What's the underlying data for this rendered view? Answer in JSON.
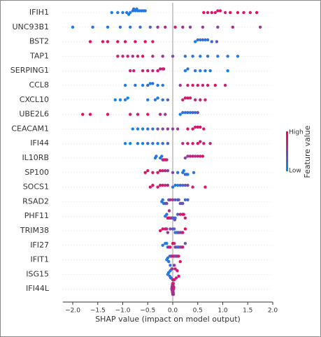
{
  "chart_data": {
    "type": "beeswarm",
    "xlabel": "SHAP value (impact on model output)",
    "xlim": [
      -2.2,
      2.0
    ],
    "xticks": [
      {
        "value": -2.0,
        "label": "−2.0"
      },
      {
        "value": -1.5,
        "label": "−1.5"
      },
      {
        "value": -1.0,
        "label": "−1.0"
      },
      {
        "value": -0.5,
        "label": "−0.5"
      },
      {
        "value": 0.0,
        "label": "0.0"
      },
      {
        "value": 0.5,
        "label": "0.5"
      },
      {
        "value": 1.0,
        "label": "1.0"
      },
      {
        "value": 1.5,
        "label": "1.5"
      },
      {
        "value": 2.0,
        "label": "2.0"
      }
    ],
    "colormap": {
      "low": "#008bfb",
      "high": "#ff0051"
    },
    "colorbar_label": "Feature value",
    "colorbar_high": "High",
    "colorbar_low": "Low",
    "series": [
      {
        "name": "IFIH1",
        "values": [
          -1.22,
          -1.1,
          -1.0,
          -0.92,
          -0.85,
          -0.8,
          -0.75,
          -0.7,
          -0.66,
          -0.62,
          -0.58,
          -0.55,
          -0.72,
          -0.78,
          -0.88,
          0.62,
          0.7,
          0.78,
          0.85,
          0.9,
          0.95,
          1.05,
          1.15,
          1.3,
          1.42,
          1.55,
          1.68
        ],
        "feature_values": [
          0.05,
          0.1,
          0.1,
          0.15,
          0.1,
          0.2,
          0.1,
          0.15,
          0.1,
          0.2,
          0.1,
          0.15,
          0.1,
          0.2,
          0.1,
          0.9,
          0.8,
          0.9,
          0.85,
          0.75,
          0.9,
          0.8,
          0.9,
          0.85,
          0.9,
          0.8,
          0.9
        ]
      },
      {
        "name": "UNC93B1",
        "values": [
          -2.0,
          -1.6,
          -1.3,
          -1.05,
          -0.85,
          -0.65,
          -0.45,
          -0.3,
          -0.15,
          0.05,
          0.2,
          0.35,
          0.6,
          0.9,
          1.2,
          1.75
        ],
        "feature_values": [
          0.1,
          0.15,
          0.1,
          0.2,
          0.15,
          0.2,
          0.3,
          0.6,
          0.7,
          0.8,
          0.7,
          0.6,
          0.6,
          0.5,
          0.7,
          0.6
        ]
      },
      {
        "name": "BST2",
        "values": [
          -1.65,
          -1.4,
          -1.3,
          -1.1,
          -0.95,
          -0.75,
          -0.55,
          -0.4,
          0.45,
          0.5,
          0.55,
          0.6,
          0.65,
          0.7,
          0.78,
          0.88
        ],
        "feature_values": [
          0.9,
          0.9,
          0.85,
          0.9,
          0.8,
          0.85,
          0.9,
          0.8,
          0.1,
          0.2,
          0.15,
          0.3,
          0.1,
          0.25,
          0.2,
          0.4
        ]
      },
      {
        "name": "TAP1",
        "values": [
          -1.1,
          -1.0,
          -0.9,
          -0.8,
          -0.7,
          -0.6,
          -0.4,
          -0.2,
          0.0,
          0.25,
          0.4,
          0.55,
          0.7,
          0.9,
          1.1,
          1.3
        ],
        "feature_values": [
          0.8,
          0.75,
          0.85,
          0.7,
          0.8,
          0.9,
          0.7,
          0.6,
          0.5,
          0.2,
          0.15,
          0.1,
          0.2,
          0.1,
          0.15,
          0.1
        ]
      },
      {
        "name": "SERPING1",
        "values": [
          -0.85,
          -0.78,
          -0.6,
          -0.5,
          -0.4,
          -0.3,
          -0.25,
          -0.2,
          -0.18,
          0.25,
          0.3,
          0.45,
          0.55,
          0.65,
          0.75,
          1.1
        ],
        "feature_values": [
          0.8,
          0.7,
          0.75,
          0.8,
          0.7,
          0.85,
          0.8,
          0.9,
          0.75,
          0.1,
          0.15,
          0.2,
          0.1,
          0.15,
          0.1,
          0.1
        ]
      },
      {
        "name": "CCL8",
        "values": [
          -0.95,
          -0.75,
          -0.6,
          -0.5,
          -0.45,
          -0.4,
          -0.3,
          -0.2,
          0.15,
          0.3,
          0.4,
          0.5,
          0.6,
          0.7,
          0.85,
          1.05
        ],
        "feature_values": [
          0.1,
          0.15,
          0.1,
          0.2,
          0.1,
          0.15,
          0.1,
          0.2,
          0.6,
          0.8,
          0.85,
          0.9,
          0.8,
          0.85,
          0.9,
          0.8
        ]
      },
      {
        "name": "CXCL10",
        "values": [
          -1.15,
          -1.05,
          -0.95,
          -0.9,
          -0.5,
          -0.35,
          -0.3,
          -0.2,
          -0.1,
          0.2,
          0.25,
          0.3,
          0.35,
          0.45,
          0.55,
          0.65
        ],
        "feature_values": [
          0.05,
          0.1,
          0.1,
          0.05,
          0.1,
          0.15,
          0.1,
          0.2,
          0.3,
          0.8,
          0.85,
          0.9,
          0.8,
          0.7,
          0.75,
          0.8
        ]
      },
      {
        "name": "UBE2L6",
        "values": [
          -1.8,
          -1.65,
          -1.3,
          -0.85,
          -0.7,
          -0.5,
          -0.25,
          -0.15,
          0.15,
          0.2,
          0.25,
          0.3,
          0.35,
          0.4,
          0.45,
          0.5
        ],
        "feature_values": [
          0.9,
          0.9,
          0.85,
          0.8,
          0.75,
          0.8,
          0.7,
          0.6,
          0.1,
          0.2,
          0.15,
          0.25,
          0.1,
          0.3,
          0.2,
          0.4
        ]
      },
      {
        "name": "CEACAM1",
        "values": [
          -0.8,
          -0.7,
          -0.6,
          -0.5,
          -0.4,
          -0.3,
          -0.2,
          -0.1,
          0.0,
          0.1,
          0.3,
          0.4,
          0.45,
          0.5,
          0.55,
          0.62
        ],
        "feature_values": [
          0.05,
          0.1,
          0.1,
          0.15,
          0.2,
          0.4,
          0.5,
          0.6,
          0.55,
          0.6,
          0.9,
          0.9,
          0.85,
          0.8,
          0.9,
          0.85
        ]
      },
      {
        "name": "IFI44",
        "values": [
          -0.95,
          -0.85,
          -0.7,
          -0.6,
          -0.5,
          -0.4,
          -0.3,
          -0.2,
          -0.1,
          0.2,
          0.3,
          0.4,
          0.5,
          0.55,
          0.62,
          0.75
        ],
        "feature_values": [
          0.1,
          0.05,
          0.15,
          0.1,
          0.2,
          0.15,
          0.1,
          0.2,
          0.3,
          0.7,
          0.85,
          0.8,
          0.9,
          0.75,
          0.8,
          0.7
        ]
      },
      {
        "name": "IL10RB",
        "values": [
          -0.35,
          -0.33,
          -0.25,
          -0.22,
          -0.2,
          -0.18,
          -0.15,
          -0.12,
          0.25,
          0.3,
          0.35,
          0.4,
          0.45,
          0.5,
          0.55,
          0.6
        ],
        "feature_values": [
          0.1,
          0.15,
          0.1,
          0.2,
          0.8,
          0.75,
          0.85,
          0.8,
          0.5,
          0.6,
          0.7,
          0.8,
          0.6,
          0.7,
          0.8,
          0.9
        ]
      },
      {
        "name": "SP100",
        "values": [
          -0.55,
          -0.5,
          -0.4,
          -0.3,
          -0.25,
          -0.2,
          -0.15,
          -0.1,
          0.0,
          0.1,
          0.2,
          0.22,
          0.25,
          0.28,
          0.3,
          0.42
        ],
        "feature_values": [
          0.9,
          0.85,
          0.8,
          0.85,
          0.9,
          0.7,
          0.75,
          0.6,
          0.5,
          0.2,
          0.15,
          0.1,
          0.2,
          0.3,
          0.15,
          0.2
        ]
      },
      {
        "name": "SOCS1",
        "values": [
          -0.45,
          -0.4,
          -0.3,
          -0.25,
          -0.2,
          -0.15,
          -0.1,
          0.0,
          0.05,
          0.1,
          0.15,
          0.2,
          0.25,
          0.3,
          0.4,
          0.65
        ],
        "feature_values": [
          0.85,
          0.9,
          0.8,
          0.85,
          0.9,
          0.7,
          0.75,
          0.2,
          0.15,
          0.1,
          0.3,
          0.2,
          0.4,
          0.5,
          0.7,
          0.8
        ]
      },
      {
        "name": "RSAD2",
        "values": [
          -0.22,
          -0.2,
          -0.18,
          -0.15,
          -0.12,
          -0.08,
          -0.05,
          0.0,
          0.05,
          0.1,
          0.12,
          0.15,
          0.18,
          0.2,
          0.25,
          0.3
        ],
        "feature_values": [
          0.1,
          0.2,
          0.15,
          0.3,
          0.5,
          0.4,
          0.6,
          0.7,
          0.3,
          0.2,
          0.4,
          0.5,
          0.3,
          0.4,
          0.2,
          0.3
        ]
      },
      {
        "name": "PHF11",
        "values": [
          -0.15,
          -0.12,
          -0.1,
          -0.08,
          -0.05,
          -0.03,
          0.0,
          0.02,
          0.05,
          0.1,
          0.15,
          0.2,
          0.22,
          0.25,
          -0.07,
          0.04
        ],
        "feature_values": [
          0.1,
          0.15,
          0.9,
          0.85,
          0.8,
          0.6,
          0.5,
          0.3,
          0.2,
          0.3,
          0.8,
          0.85,
          0.9,
          0.8,
          0.7,
          0.4
        ]
      },
      {
        "name": "TRIM38",
        "values": [
          -0.25,
          -0.2,
          -0.15,
          -0.12,
          -0.1,
          -0.05,
          0.0,
          0.03,
          0.05,
          0.08,
          0.1,
          0.12,
          0.15,
          0.18,
          0.2,
          0.25
        ],
        "feature_values": [
          0.9,
          0.8,
          0.85,
          0.7,
          0.6,
          0.5,
          0.4,
          0.3,
          0.2,
          0.1,
          0.3,
          0.5,
          0.4,
          0.6,
          0.8,
          0.9
        ]
      },
      {
        "name": "IFI27",
        "values": [
          -0.2,
          -0.15,
          -0.12,
          -0.1,
          -0.08,
          -0.05,
          0.0,
          0.03,
          0.05,
          0.08,
          0.1,
          0.12,
          0.15,
          0.18,
          0.2,
          0.25
        ],
        "feature_values": [
          0.1,
          0.2,
          0.1,
          0.15,
          0.8,
          0.85,
          0.9,
          0.7,
          0.5,
          0.4,
          0.3,
          0.2,
          0.6,
          0.5,
          0.8,
          0.4
        ]
      },
      {
        "name": "IFIT1",
        "values": [
          -0.12,
          -0.1,
          -0.08,
          -0.06,
          -0.04,
          -0.02,
          0.0,
          0.02,
          0.04,
          0.06,
          0.08,
          0.1,
          0.12,
          0.15,
          -0.05,
          0.03
        ],
        "feature_values": [
          0.1,
          0.15,
          0.2,
          0.1,
          0.3,
          0.8,
          0.85,
          0.9,
          0.5,
          0.4,
          0.6,
          0.7,
          0.8,
          0.9,
          0.2,
          0.6
        ]
      },
      {
        "name": "ISG15",
        "values": [
          -0.1,
          -0.08,
          -0.06,
          -0.05,
          -0.04,
          -0.03,
          -0.02,
          -0.01,
          0.0,
          0.01,
          0.02,
          0.03,
          0.05,
          0.07,
          0.09,
          0.12
        ],
        "feature_values": [
          0.1,
          0.15,
          0.2,
          0.1,
          0.3,
          0.2,
          0.5,
          0.6,
          0.7,
          0.8,
          0.6,
          0.9,
          0.8,
          0.7,
          0.85,
          0.9
        ]
      },
      {
        "name": "IFI44L",
        "values": [
          -0.02,
          -0.015,
          -0.01,
          -0.008,
          -0.005,
          -0.003,
          0.0,
          0.002,
          0.004,
          0.006,
          0.008,
          0.01,
          0.012,
          0.015,
          0.018,
          0.02
        ],
        "feature_values": [
          0.5,
          0.6,
          0.7,
          0.8,
          0.6,
          0.5,
          0.7,
          0.8,
          0.9,
          0.6,
          0.5,
          0.7,
          0.8,
          0.6,
          0.7,
          0.8
        ]
      }
    ]
  }
}
